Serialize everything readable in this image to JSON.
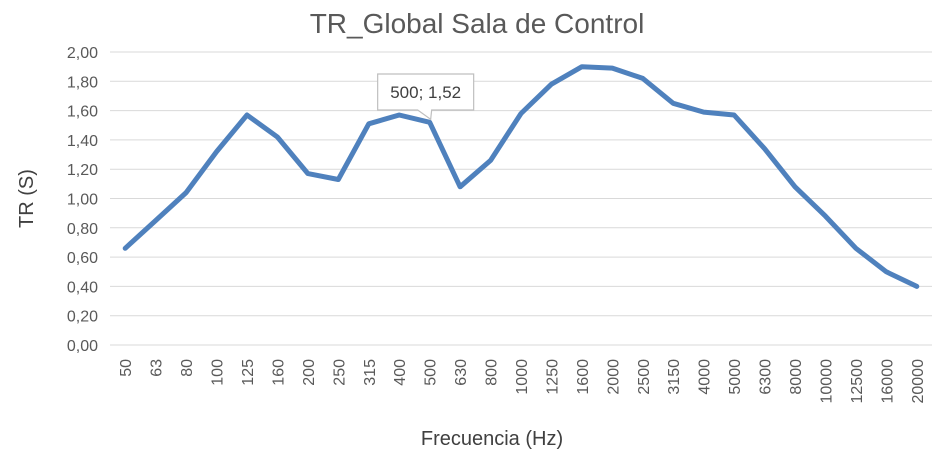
{
  "chart_data": {
    "type": "line",
    "title": "TR_Global Sala de Control",
    "xlabel": "Frecuencia (Hz)",
    "ylabel": "TR (S)",
    "ylim": [
      0,
      2
    ],
    "yticks": [
      "0,00",
      "0,20",
      "0,40",
      "0,60",
      "0,80",
      "1,00",
      "1,20",
      "1,40",
      "1,60",
      "1,80",
      "2,00"
    ],
    "categories": [
      "50",
      "63",
      "80",
      "100",
      "125",
      "160",
      "200",
      "250",
      "315",
      "400",
      "500",
      "630",
      "800",
      "1000",
      "1250",
      "1600",
      "2000",
      "2500",
      "3150",
      "4000",
      "5000",
      "6300",
      "8000",
      "10000",
      "12500",
      "16000",
      "20000"
    ],
    "series": [
      {
        "color": "#4f81bd",
        "values": [
          0.66,
          0.85,
          1.04,
          1.32,
          1.57,
          1.42,
          1.17,
          1.13,
          1.51,
          1.57,
          1.52,
          1.08,
          1.26,
          1.58,
          1.78,
          1.9,
          1.89,
          1.82,
          1.65,
          1.59,
          1.57,
          1.34,
          1.08,
          0.88,
          0.66,
          0.5,
          0.4
        ]
      }
    ],
    "annotation": {
      "category": "500",
      "text": "500; 1,52"
    },
    "grid": true,
    "legend": "none"
  }
}
